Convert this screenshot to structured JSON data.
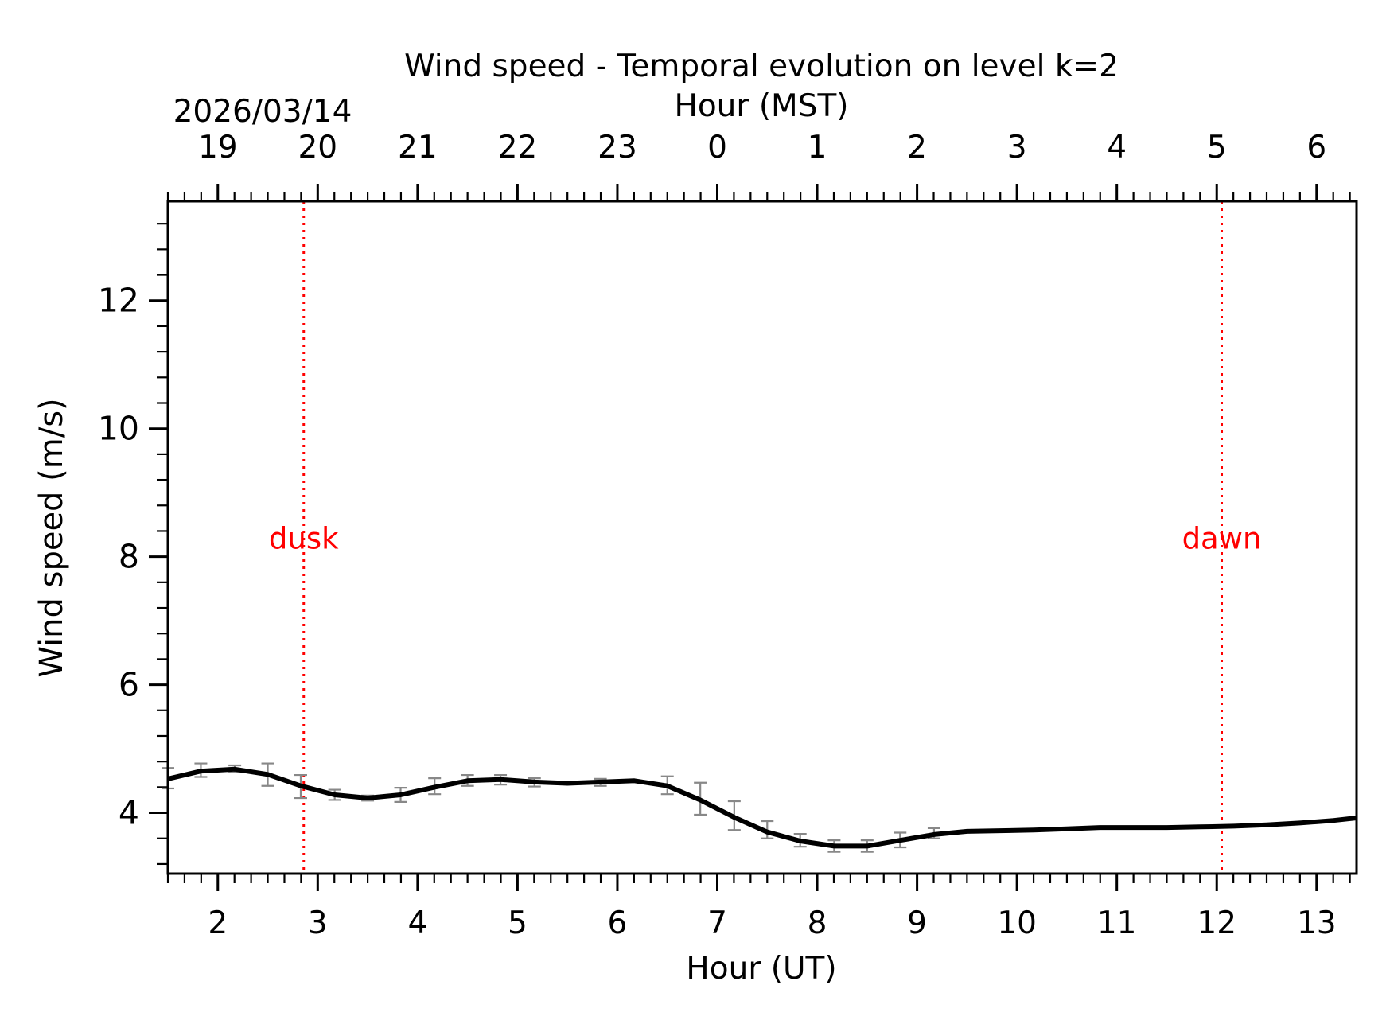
{
  "chart_data": {
    "type": "line",
    "title": "Wind speed - Temporal evolution on level k=2",
    "date_label": "2026/03/14",
    "top_axis_label": "Hour (MST)",
    "xlabel": "Hour (UT)",
    "ylabel": "Wind speed (m/s)",
    "xlim": [
      1.5,
      13.4
    ],
    "ylim": [
      3.05,
      13.55
    ],
    "x_ticks": [
      2,
      3,
      4,
      5,
      6,
      7,
      8,
      9,
      10,
      11,
      12,
      13
    ],
    "x_tick_labels": [
      "2",
      "3",
      "4",
      "5",
      "6",
      "7",
      "8",
      "9",
      "10",
      "11",
      "12",
      "13"
    ],
    "top_ticks": [
      2,
      3,
      4,
      5,
      6,
      7,
      8,
      9,
      10,
      11,
      12,
      13
    ],
    "top_tick_labels": [
      "19",
      "20",
      "21",
      "22",
      "23",
      "0",
      "1",
      "2",
      "3",
      "4",
      "5",
      "6"
    ],
    "y_ticks": [
      4,
      6,
      8,
      10,
      12
    ],
    "y_tick_labels": [
      "4",
      "6",
      "8",
      "10",
      "12"
    ],
    "series": [
      {
        "name": "wind speed",
        "color": "#000000",
        "x": [
          1.5,
          1.83,
          2.17,
          2.5,
          2.83,
          3.17,
          3.5,
          3.83,
          4.17,
          4.5,
          4.83,
          5.17,
          5.5,
          5.83,
          6.17,
          6.5,
          6.83,
          7.17,
          7.5,
          7.83,
          8.17,
          8.5,
          8.83,
          9.17,
          9.5,
          9.83,
          10.17,
          10.5,
          10.83,
          11.17,
          11.5,
          11.83,
          12.17,
          12.5,
          12.83,
          13.17,
          13.4
        ],
        "y": [
          4.53,
          4.65,
          4.68,
          4.6,
          4.42,
          4.28,
          4.23,
          4.28,
          4.4,
          4.5,
          4.52,
          4.48,
          4.46,
          4.48,
          4.5,
          4.42,
          4.2,
          3.93,
          3.7,
          3.56,
          3.48,
          3.48,
          3.57,
          3.66,
          3.71,
          3.72,
          3.73,
          3.75,
          3.77,
          3.77,
          3.77,
          3.78,
          3.79,
          3.81,
          3.84,
          3.88,
          3.92
        ]
      }
    ],
    "error_bars": {
      "color": "#888888",
      "x": [
        1.5,
        1.83,
        2.17,
        2.5,
        2.83,
        3.17,
        3.5,
        3.83,
        4.17,
        4.5,
        4.83,
        5.17,
        5.83,
        6.5,
        6.83,
        7.17,
        7.5,
        7.83,
        8.17,
        8.5,
        8.83,
        9.17
      ],
      "low": [
        4.38,
        4.56,
        4.63,
        4.42,
        4.23,
        4.2,
        4.19,
        4.17,
        4.29,
        4.42,
        4.44,
        4.41,
        4.42,
        4.29,
        3.97,
        3.73,
        3.6,
        3.47,
        3.39,
        3.39,
        3.46,
        3.6
      ],
      "high": [
        4.7,
        4.77,
        4.74,
        4.77,
        4.59,
        4.36,
        4.27,
        4.39,
        4.54,
        4.59,
        4.59,
        4.54,
        4.53,
        4.57,
        4.47,
        4.18,
        3.87,
        3.67,
        3.57,
        3.57,
        3.69,
        3.76
      ]
    },
    "annotations": [
      {
        "label": "dusk",
        "x": 2.86,
        "label_y": 8.3,
        "color": "#ff0000"
      },
      {
        "label": "dawn",
        "x": 12.05,
        "label_y": 8.3,
        "color": "#ff0000"
      }
    ]
  }
}
